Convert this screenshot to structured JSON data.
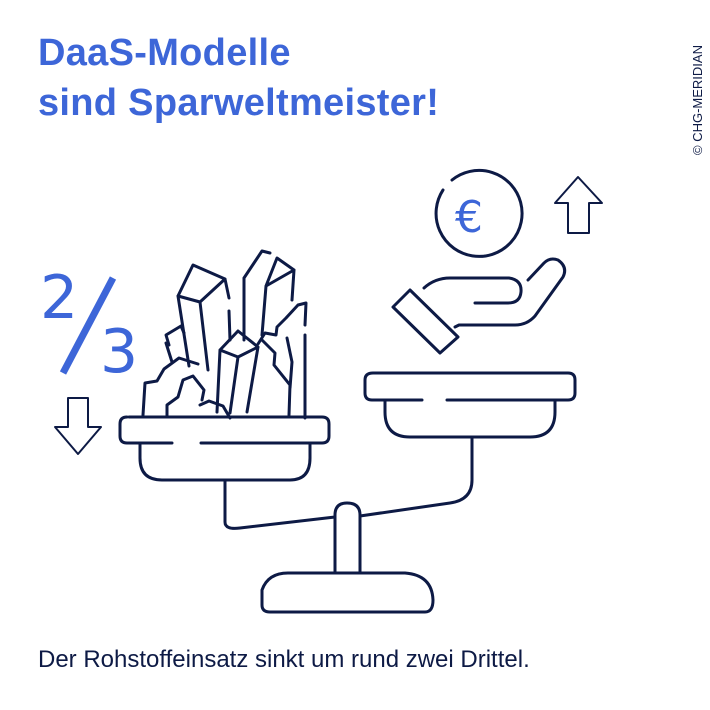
{
  "title": {
    "line1": "DaaS-Modelle",
    "line2": "sind Sparweltmeister!"
  },
  "copyright": "© CHG-MERIDIAN",
  "fraction": {
    "numerator": "2",
    "denominator": "3"
  },
  "euro_symbol": "€",
  "caption": "Der Rohstoffeinsatz sinkt um rund zwei Drittel.",
  "colors": {
    "accent": "#3d66d8",
    "line": "#0d1a45"
  }
}
